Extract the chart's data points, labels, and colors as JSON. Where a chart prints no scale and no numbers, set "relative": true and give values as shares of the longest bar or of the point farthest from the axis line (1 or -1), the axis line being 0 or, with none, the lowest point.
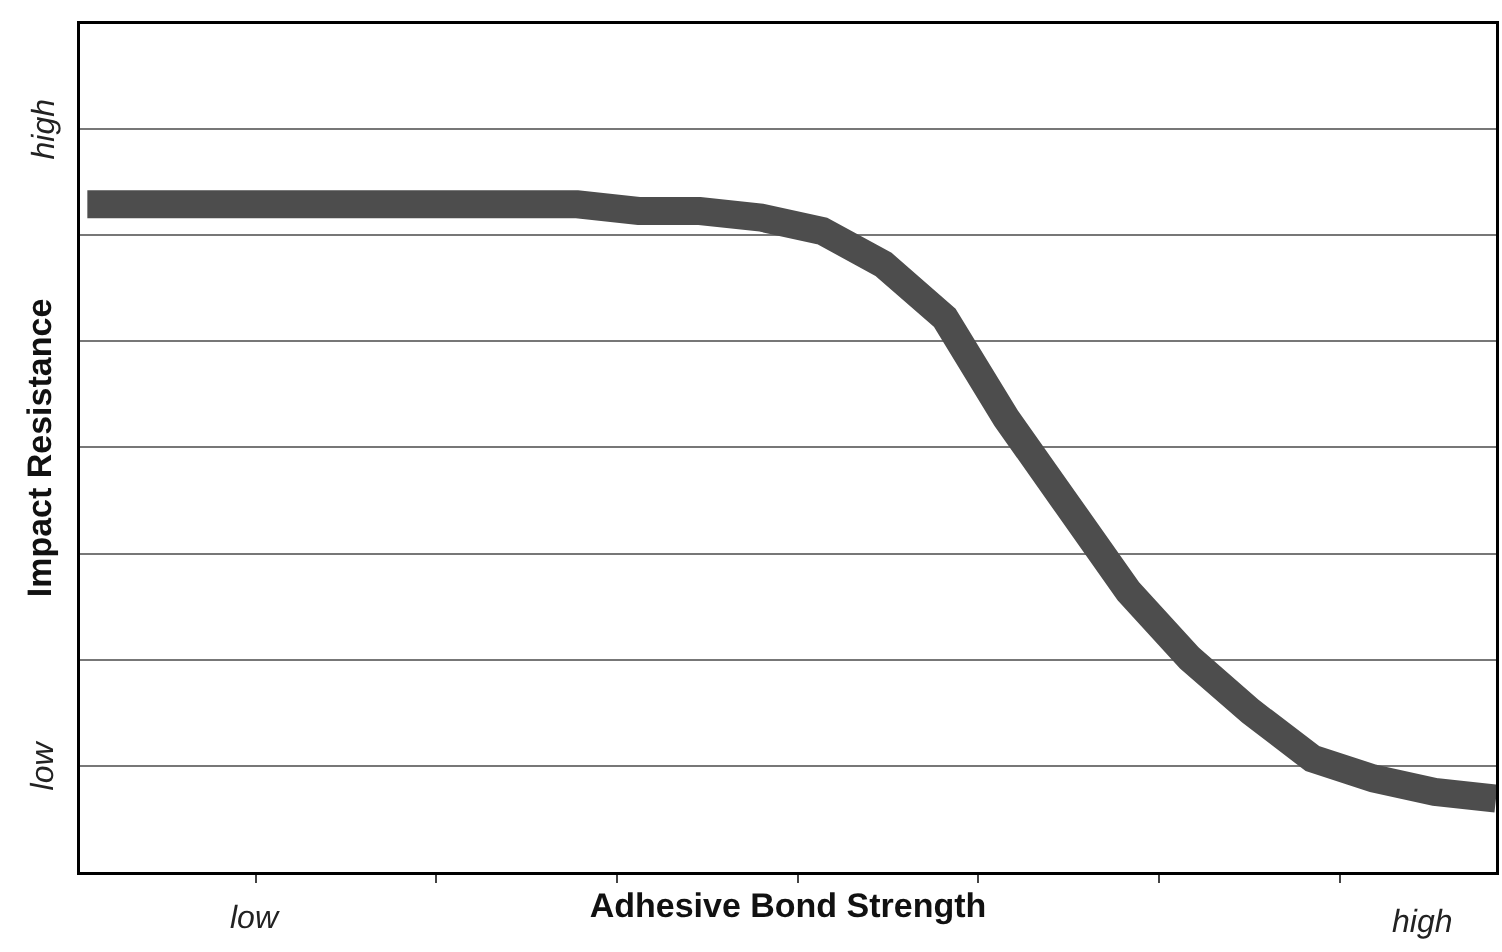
{
  "chart_data": {
    "type": "line",
    "relative": true,
    "xlabel": "Adhesive Bond Strength",
    "ylabel": "Impact Resistance",
    "categories": [
      null,
      null,
      null,
      null,
      null,
      null,
      null,
      null,
      null,
      null,
      null,
      null,
      null,
      null,
      null,
      null,
      null,
      null,
      null,
      null,
      null,
      null,
      null,
      null
    ],
    "series": [
      {
        "color": "#4d4d4d",
        "values": [
          1,
          1,
          1,
          1,
          1,
          1,
          1,
          1,
          1,
          0.99,
          0.99,
          0.98,
          0.96,
          0.91,
          0.83,
          0.68,
          0.55,
          0.42,
          0.32,
          0.24,
          0.17,
          0.14,
          0.12,
          0.11
        ]
      }
    ],
    "annotations": [
      "low",
      "high",
      "low",
      "high"
    ],
    "grid": true,
    "marker": "none",
    "line_style": "solid"
  }
}
